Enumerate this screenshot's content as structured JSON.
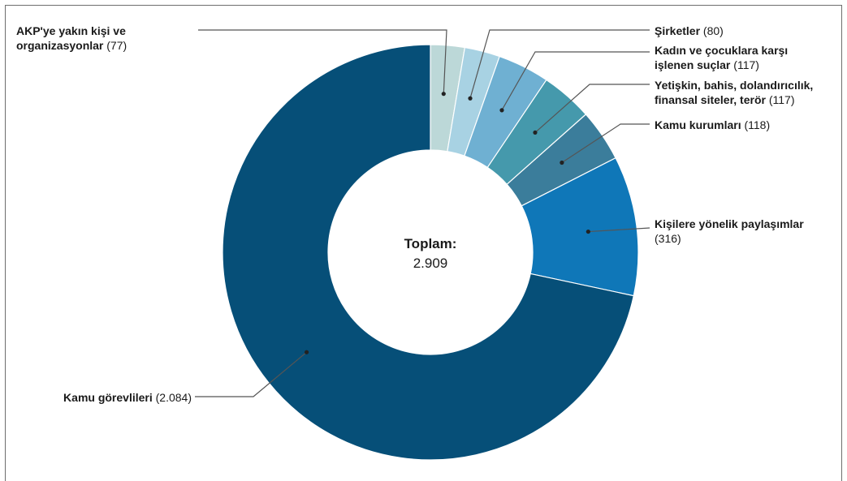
{
  "chart_data": {
    "type": "pie",
    "donut": true,
    "center_label": {
      "title": "Toplam:",
      "value": "2.909"
    },
    "slices": [
      {
        "name": "AKP'ye yakın kişi ve organizasyonlar",
        "value": 77,
        "value_text": "(77)",
        "color": "#bcd8d8",
        "label_lines": [
          [
            {
              "t": "AKP'ye yakın kişi ve",
              "b": true
            }
          ],
          [
            {
              "t": "organizasyonlar",
              "b": true
            },
            {
              "t": " (77)",
              "b": false
            }
          ]
        ]
      },
      {
        "name": "Şirketler",
        "value": 80,
        "value_text": "(80)",
        "color": "#a8d2e3",
        "label_lines": [
          [
            {
              "t": "Şirketler",
              "b": true
            },
            {
              "t": " (80)",
              "b": false
            }
          ]
        ]
      },
      {
        "name": "Kadın ve çocuklara karşı işlenen suçlar",
        "value": 117,
        "value_text": "(117)",
        "color": "#6fb0d2",
        "label_lines": [
          [
            {
              "t": "Kadın ve çocuklara karşı",
              "b": true
            }
          ],
          [
            {
              "t": "işlenen suçlar",
              "b": true
            },
            {
              "t": " (117)",
              "b": false
            }
          ]
        ]
      },
      {
        "name": "Yetişkin, bahis, dolandırıcılık, finansal siteler, terör",
        "value": 117,
        "value_text": "(117)",
        "color": "#4599ac",
        "label_lines": [
          [
            {
              "t": "Yetişkin, bahis, dolandırıcılık,",
              "b": true
            }
          ],
          [
            {
              "t": "finansal siteler, terör",
              "b": true
            },
            {
              "t": " (117)",
              "b": false
            }
          ]
        ]
      },
      {
        "name": "Kamu kurumları",
        "value": 118,
        "value_text": "(118)",
        "color": "#3b7d9b",
        "label_lines": [
          [
            {
              "t": "Kamu kurumları",
              "b": true
            },
            {
              "t": " (118)",
              "b": false
            }
          ]
        ]
      },
      {
        "name": "Kişilere yönelik paylaşımlar",
        "value": 316,
        "value_text": "(316)",
        "color": "#0f77b8",
        "label_lines": [
          [
            {
              "t": "Kişilere yönelik paylaşımlar",
              "b": true
            }
          ],
          [
            {
              "t": "(316)",
              "b": false
            }
          ]
        ]
      },
      {
        "name": "Kamu görevlileri",
        "value": 2084,
        "value_text": "(2.084)",
        "color": "#064f78",
        "label_lines": [
          [
            {
              "t": "Kamu görevlileri",
              "b": true
            },
            {
              "t": " (2.084)",
              "b": false
            }
          ]
        ]
      }
    ],
    "start_angle": "top",
    "direction": "clockwise",
    "legend": "none"
  }
}
